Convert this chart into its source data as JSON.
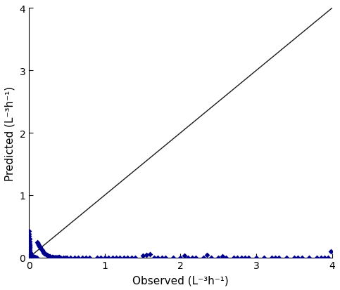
{
  "title": "",
  "xlabel": "Observed (L⁻³h⁻¹)",
  "ylabel": "Predicted (L⁻³h⁻¹)",
  "xlim": [
    0,
    4
  ],
  "ylim": [
    0,
    4
  ],
  "xticks": [
    0,
    1,
    2,
    3,
    4
  ],
  "yticks": [
    0,
    1,
    2,
    3,
    4
  ],
  "line_color": "#1a1a1a",
  "marker_color": "#00008B",
  "marker_size": 4,
  "background_color": "#ffffff",
  "scatter_x": [
    0.0,
    0.0,
    0.0,
    0.0,
    0.0,
    0.0,
    0.0,
    0.0,
    0.0,
    0.0,
    0.0,
    0.0,
    0.0,
    0.0,
    0.0,
    0.0,
    0.0,
    0.0,
    0.0,
    0.0,
    0.0,
    0.0,
    0.0,
    0.0,
    0.0,
    0.0,
    0.0,
    0.0,
    0.0,
    0.0,
    0.0,
    0.0,
    0.0,
    0.0,
    0.0,
    0.0,
    0.0,
    0.0,
    0.0,
    0.0,
    0.005,
    0.007,
    0.008,
    0.009,
    0.01,
    0.01,
    0.01,
    0.01,
    0.01,
    0.01,
    0.012,
    0.015,
    0.016,
    0.018,
    0.02,
    0.02,
    0.02,
    0.025,
    0.025,
    0.028,
    0.03,
    0.03,
    0.03,
    0.035,
    0.04,
    0.04,
    0.045,
    0.05,
    0.05,
    0.055,
    0.06,
    0.065,
    0.07,
    0.075,
    0.08,
    0.085,
    0.09,
    0.095,
    0.1,
    0.1,
    0.11,
    0.12,
    0.13,
    0.14,
    0.15,
    0.16,
    0.17,
    0.18,
    0.19,
    0.2,
    0.22,
    0.24,
    0.25,
    0.27,
    0.28,
    0.3,
    0.32,
    0.35,
    0.38,
    0.4,
    0.42,
    0.45,
    0.48,
    0.5,
    0.55,
    0.6,
    0.65,
    0.7,
    0.75,
    0.8,
    0.9,
    0.95,
    1.0,
    1.05,
    1.1,
    1.15,
    1.2,
    1.25,
    1.3,
    1.35,
    1.4,
    1.5,
    1.55,
    1.6,
    1.65,
    1.7,
    1.75,
    1.8,
    1.9,
    2.0,
    2.05,
    2.1,
    2.15,
    2.2,
    2.3,
    2.35,
    2.4,
    2.5,
    2.55,
    2.6,
    2.7,
    2.75,
    2.8,
    2.85,
    2.9,
    3.0,
    3.1,
    3.2,
    3.25,
    3.3,
    3.4,
    3.5,
    3.55,
    3.6,
    3.7,
    3.8,
    3.85,
    3.9,
    3.95,
    3.98
  ],
  "scatter_y": [
    0.42,
    0.38,
    0.35,
    0.3,
    0.27,
    0.25,
    0.22,
    0.2,
    0.18,
    0.17,
    0.15,
    0.14,
    0.12,
    0.11,
    0.1,
    0.09,
    0.085,
    0.08,
    0.075,
    0.07,
    0.065,
    0.06,
    0.055,
    0.05,
    0.045,
    0.04,
    0.035,
    0.03,
    0.025,
    0.022,
    0.02,
    0.018,
    0.015,
    0.012,
    0.01,
    0.008,
    0.006,
    0.005,
    0.003,
    0.002,
    0.3,
    0.25,
    0.22,
    0.2,
    0.18,
    0.16,
    0.14,
    0.12,
    0.1,
    0.09,
    0.08,
    0.07,
    0.06,
    0.055,
    0.05,
    0.045,
    0.04,
    0.035,
    0.03,
    0.025,
    0.022,
    0.02,
    0.018,
    0.015,
    0.013,
    0.011,
    0.009,
    0.008,
    0.006,
    0.005,
    0.004,
    0.003,
    0.002,
    0.002,
    0.001,
    0.001,
    0.001,
    0.001,
    0.001,
    0.0,
    0.24,
    0.22,
    0.2,
    0.18,
    0.16,
    0.14,
    0.12,
    0.1,
    0.08,
    0.06,
    0.05,
    0.04,
    0.03,
    0.02,
    0.015,
    0.012,
    0.01,
    0.008,
    0.005,
    0.002,
    0.001,
    0.001,
    0.0,
    0.0,
    0.0,
    0.0,
    0.0,
    0.0,
    0.0,
    0.0,
    0.0,
    0.0,
    0.0,
    0.0,
    0.0,
    0.0,
    0.0,
    0.0,
    0.0,
    0.0,
    0.0,
    0.03,
    0.04,
    0.05,
    0.0,
    0.0,
    0.0,
    0.0,
    0.0,
    0.0,
    0.03,
    0.0,
    0.0,
    0.0,
    0.0,
    0.04,
    0.0,
    0.0,
    0.02,
    0.0,
    0.0,
    0.0,
    0.0,
    0.0,
    0.0,
    0.0,
    0.0,
    0.0,
    0.0,
    0.0,
    0.0,
    0.0,
    0.0,
    0.0,
    0.0,
    0.0,
    0.0,
    0.0,
    0.0,
    0.1
  ]
}
